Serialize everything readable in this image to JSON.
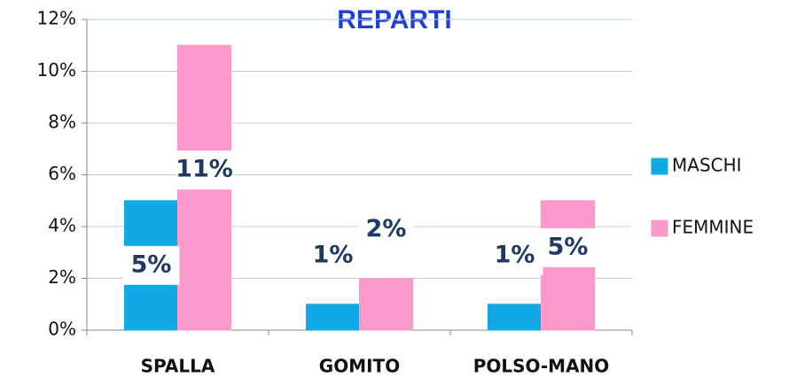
{
  "chart_data": {
    "type": "bar",
    "title": "REPARTI",
    "categories": [
      "SPALLA",
      "GOMITO",
      "POLSO-MANO"
    ],
    "series": [
      {
        "name": "MASCHI",
        "color": "#12a9e8",
        "values": [
          5,
          1,
          1
        ],
        "value_labels": [
          "5%",
          "1%",
          "1%"
        ]
      },
      {
        "name": "FEMMINE",
        "color": "#fb99cb",
        "values": [
          11,
          2,
          5
        ],
        "value_labels": [
          "11%",
          "2%",
          "5%"
        ]
      }
    ],
    "ylim": [
      0,
      12
    ],
    "yticks": [
      {
        "value": 0,
        "label": "0%"
      },
      {
        "value": 2,
        "label": "2%"
      },
      {
        "value": 4,
        "label": "4%"
      },
      {
        "value": 6,
        "label": "6%"
      },
      {
        "value": 8,
        "label": "8%"
      },
      {
        "value": 10,
        "label": "10%"
      },
      {
        "value": 12,
        "label": "12%"
      }
    ],
    "grid": true,
    "legend": "right"
  }
}
